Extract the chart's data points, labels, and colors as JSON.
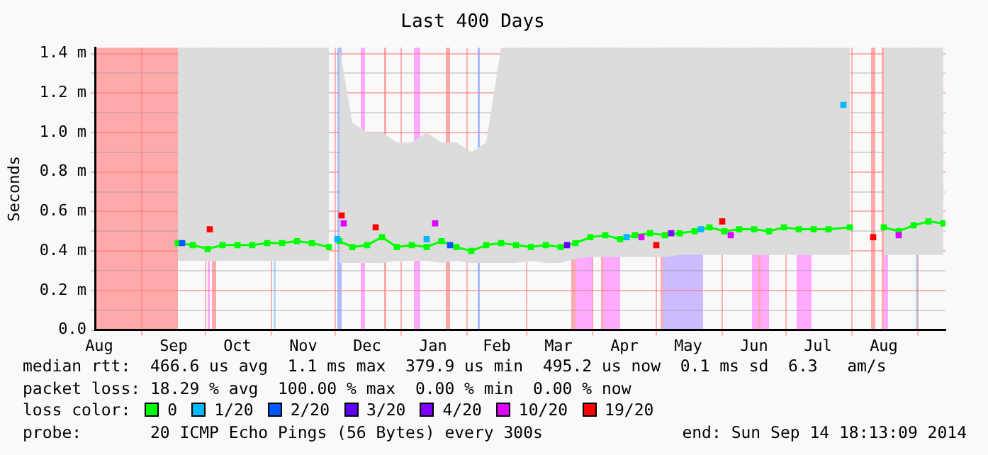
{
  "chart_data": {
    "type": "line",
    "title": "Last 400 Days",
    "ylabel": "Seconds",
    "x": [
      "2013-09-18",
      "2013-09-25",
      "2013-10-02",
      "2013-10-09",
      "2013-10-16",
      "2013-10-23",
      "2013-10-30",
      "2013-11-06",
      "2013-11-13",
      "2013-11-20",
      "2013-11-28",
      "2013-11-30",
      "2013-12-03",
      "2013-12-09",
      "2013-12-16",
      "2013-12-23",
      "2013-12-30",
      "2014-01-06",
      "2014-01-13",
      "2014-01-20",
      "2014-01-27",
      "2014-02-03",
      "2014-02-10",
      "2014-02-17",
      "2014-02-24",
      "2014-03-03",
      "2014-03-10",
      "2014-03-17",
      "2014-03-24",
      "2014-03-31",
      "2014-04-07",
      "2014-04-14",
      "2014-04-21",
      "2014-04-28",
      "2014-05-05",
      "2014-05-12",
      "2014-05-19",
      "2014-05-26",
      "2014-06-02",
      "2014-06-09",
      "2014-06-16",
      "2014-06-23",
      "2014-06-30",
      "2014-07-07",
      "2014-07-14",
      "2014-07-21",
      "2014-07-31",
      "2014-08-06",
      "2014-08-16",
      "2014-08-23",
      "2014-08-30",
      "2014-09-06",
      "2014-09-13"
    ],
    "series": [
      {
        "name": "0",
        "color": "#00ff00",
        "values": [
          0.44,
          0.43,
          0.41,
          0.43,
          0.43,
          0.43,
          0.44,
          0.44,
          0.45,
          0.44,
          0.42,
          null,
          0.45,
          0.42,
          0.43,
          0.47,
          0.42,
          0.43,
          0.42,
          0.45,
          0.42,
          0.4,
          0.43,
          0.44,
          0.43,
          0.42,
          0.43,
          0.42,
          0.44,
          0.47,
          0.48,
          0.46,
          0.48,
          0.49,
          0.48,
          0.49,
          0.5,
          0.52,
          0.5,
          0.51,
          0.51,
          0.5,
          0.52,
          0.51,
          0.51,
          0.51,
          0.52,
          null,
          0.52,
          0.5,
          0.53,
          0.55,
          0.54
        ],
        "lower": [
          0.35,
          0.35,
          0.35,
          0.35,
          0.35,
          0.35,
          0.35,
          0.35,
          0.35,
          0.35,
          0.35,
          null,
          0.34,
          0.34,
          0.34,
          0.34,
          0.35,
          0.35,
          0.35,
          0.34,
          0.35,
          0.34,
          0.34,
          0.34,
          0.34,
          0.35,
          0.34,
          0.34,
          0.36,
          0.37,
          0.37,
          0.37,
          0.37,
          0.37,
          0.37,
          0.38,
          0.38,
          0.38,
          0.38,
          0.38,
          0.38,
          0.38,
          0.38,
          0.38,
          0.38,
          0.38,
          0.38,
          null,
          0.38,
          0.38,
          0.38,
          0.38,
          0.38
        ],
        "upper": [
          1.43,
          1.43,
          1.43,
          1.43,
          1.43,
          1.43,
          1.43,
          1.43,
          1.43,
          1.43,
          1.43,
          null,
          1.43,
          1.05,
          1.0,
          1.0,
          0.95,
          0.95,
          1.0,
          0.95,
          0.95,
          0.9,
          0.95,
          1.43,
          1.43,
          1.43,
          1.43,
          1.43,
          1.43,
          1.43,
          1.43,
          1.43,
          1.43,
          1.43,
          1.43,
          1.43,
          1.43,
          1.43,
          1.43,
          1.43,
          1.43,
          1.43,
          1.43,
          1.43,
          1.43,
          1.43,
          1.43,
          null,
          1.43,
          1.43,
          1.43,
          1.43,
          1.43
        ]
      },
      {
        "name": "1/20",
        "type": "scatter",
        "color": "#00b8ff",
        "x": [
          "2013-12-02",
          "2014-01-13",
          "2014-04-17",
          "2014-05-22",
          "2014-07-28"
        ],
        "values": [
          0.46,
          0.46,
          0.47,
          0.51,
          1.14
        ]
      },
      {
        "name": "2/20",
        "type": "scatter",
        "color": "#0059ff",
        "x": [
          "2013-09-20",
          "2014-01-24"
        ],
        "values": [
          0.44,
          0.43
        ]
      },
      {
        "name": "3/20",
        "type": "scatter",
        "color": "#5e00ff",
        "x": [
          "2014-03-20"
        ],
        "values": [
          0.43
        ]
      },
      {
        "name": "4/20",
        "type": "scatter",
        "color": "#7e00ff",
        "x": [
          "2014-05-08"
        ],
        "values": [
          0.49
        ]
      },
      {
        "name": "10/20",
        "type": "scatter",
        "color": "#dd00ff",
        "x": [
          "2013-12-05",
          "2014-01-17",
          "2014-04-24",
          "2014-06-05",
          "2014-08-23"
        ],
        "values": [
          0.54,
          0.54,
          0.47,
          0.48,
          0.48
        ]
      },
      {
        "name": "19/20",
        "type": "scatter",
        "color": "#ff0000",
        "x": [
          "2013-10-03",
          "2013-12-04",
          "2013-12-20",
          "2014-05-01",
          "2014-06-01",
          "2014-08-11"
        ],
        "values": [
          0.51,
          0.58,
          0.52,
          0.43,
          0.55,
          0.47
        ]
      }
    ],
    "legend": "bottom",
    "legend_title": "loss color:",
    "marker": "square",
    "grid": true,
    "xlim": [
      "2013-08-10",
      "2014-09-14"
    ],
    "xticks": [
      {
        "value": "2013-08-12",
        "label": "Aug"
      },
      {
        "value": "2013-09-01",
        "label": null
      },
      {
        "value": "2013-09-16",
        "label": "Sep"
      },
      {
        "value": "2013-10-01",
        "label": null
      },
      {
        "value": "2013-10-16",
        "label": "Oct"
      },
      {
        "value": "2013-11-01",
        "label": null
      },
      {
        "value": "2013-11-16",
        "label": "Nov"
      },
      {
        "value": "2013-12-01",
        "label": null
      },
      {
        "value": "2013-12-16",
        "label": "Dec"
      },
      {
        "value": "2014-01-01",
        "label": null
      },
      {
        "value": "2014-01-16",
        "label": "Jan"
      },
      {
        "value": "2014-02-01",
        "label": null
      },
      {
        "value": "2014-02-15",
        "label": "Feb"
      },
      {
        "value": "2014-03-01",
        "label": null
      },
      {
        "value": "2014-03-16",
        "label": "Mar"
      },
      {
        "value": "2014-04-01",
        "label": null
      },
      {
        "value": "2014-04-16",
        "label": "Apr"
      },
      {
        "value": "2014-05-01",
        "label": null
      },
      {
        "value": "2014-05-16",
        "label": "May"
      },
      {
        "value": "2014-06-01",
        "label": null
      },
      {
        "value": "2014-06-16",
        "label": "Jun"
      },
      {
        "value": "2014-07-01",
        "label": null
      },
      {
        "value": "2014-07-16",
        "label": "Jul"
      },
      {
        "value": "2014-08-01",
        "label": null
      },
      {
        "value": "2014-08-16",
        "label": "Aug"
      },
      {
        "value": "2014-09-01",
        "label": null
      }
    ],
    "ylim": [
      0,
      1.43
    ],
    "yticks": [
      {
        "value": 0,
        "label": "0.0"
      },
      {
        "value": 0.1,
        "label": null
      },
      {
        "value": 0.2,
        "label": "0.2 m"
      },
      {
        "value": 0.3,
        "label": null
      },
      {
        "value": 0.4,
        "label": "0.4 m"
      },
      {
        "value": 0.5,
        "label": null
      },
      {
        "value": 0.6,
        "label": "0.6 m"
      },
      {
        "value": 0.7,
        "label": null
      },
      {
        "value": 0.8,
        "label": "0.8 m"
      },
      {
        "value": 0.9,
        "label": null
      },
      {
        "value": 1.0,
        "label": "1.0 m"
      },
      {
        "value": 1.1,
        "label": null
      },
      {
        "value": 1.2,
        "label": "1.2 m"
      },
      {
        "value": 1.3,
        "label": null
      },
      {
        "value": 1.4,
        "label": "1.4 m"
      }
    ],
    "bands": [
      {
        "axis": "x",
        "from": "2013-08-10",
        "to": "2013-09-18",
        "color": "#ffaaaa"
      },
      {
        "axis": "x",
        "from": "2013-10-02",
        "to": "2013-10-03",
        "color": "#ffaaff"
      },
      {
        "axis": "x",
        "from": "2013-10-04",
        "to": "2013-10-06",
        "color": "#ffaaaa"
      },
      {
        "axis": "x",
        "from": "2013-11-02",
        "to": "2013-11-03",
        "color": "#aaddff"
      },
      {
        "axis": "x",
        "from": "2013-12-02",
        "to": "2013-12-04",
        "color": "#aabbff"
      },
      {
        "axis": "x",
        "from": "2013-12-13",
        "to": "2013-12-15",
        "color": "#ffaaff"
      },
      {
        "axis": "x",
        "from": "2013-12-24",
        "to": "2013-12-25",
        "color": "#ffaaaa"
      },
      {
        "axis": "x",
        "from": "2014-01-07",
        "to": "2014-01-10",
        "color": "#ffaaff"
      },
      {
        "axis": "x",
        "from": "2014-01-22",
        "to": "2014-01-24",
        "color": "#ffaaaa"
      },
      {
        "axis": "x",
        "from": "2014-02-06",
        "to": "2014-02-07",
        "color": "#aabbff"
      },
      {
        "axis": "x",
        "from": "2014-03-22",
        "to": "2014-03-24",
        "color": "#ffaaaa"
      },
      {
        "axis": "x",
        "from": "2014-03-24",
        "to": "2014-04-01",
        "color": "#ffaaff"
      },
      {
        "axis": "x",
        "from": "2014-04-05",
        "to": "2014-04-06",
        "color": "#ffaaaa"
      },
      {
        "axis": "x",
        "from": "2014-04-06",
        "to": "2014-04-14",
        "color": "#ffaaff"
      },
      {
        "axis": "x",
        "from": "2014-05-03",
        "to": "2014-05-04",
        "color": "#ffaaaa"
      },
      {
        "axis": "x",
        "from": "2014-05-04",
        "to": "2014-05-23",
        "color": "#ccbbff"
      },
      {
        "axis": "x",
        "from": "2014-06-15",
        "to": "2014-06-23",
        "color": "#ffaaff"
      },
      {
        "axis": "x",
        "from": "2014-06-18",
        "to": "2014-06-19",
        "color": "#ffaaaa"
      },
      {
        "axis": "x",
        "from": "2014-07-06",
        "to": "2014-07-13",
        "color": "#ffaaff"
      },
      {
        "axis": "x",
        "from": "2014-08-10",
        "to": "2014-08-12",
        "color": "#ffaaaa"
      },
      {
        "axis": "x",
        "from": "2014-08-15",
        "to": "2014-08-16",
        "color": "#ffaaaa"
      },
      {
        "axis": "x",
        "from": "2014-08-16",
        "to": "2014-08-18",
        "color": "#ffaaff"
      },
      {
        "axis": "x",
        "from": "2014-08-31",
        "to": "2014-09-01",
        "color": "#aaddff"
      }
    ],
    "annotations": [
      "median rtt:  466.6 us avg  1.1 ms max  379.9 us min  495.2 us now  0.1 ms sd  6.3   am/s",
      "packet loss: 18.29 % avg  100.00 % max  0.00 % min  0.00 % now",
      "probe:       20 ICMP Echo Pings (56 Bytes) every 300s",
      "end: Sun Sep 14 18:13:09 2014"
    ]
  }
}
